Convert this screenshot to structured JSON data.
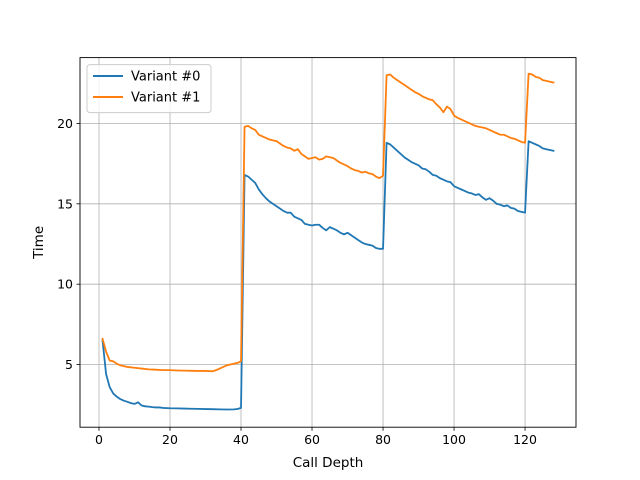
{
  "chart_data": {
    "type": "line",
    "title": "",
    "xlabel": "Call Depth",
    "ylabel": "Time",
    "xlim": [
      -5.35,
      134.35
    ],
    "ylim": [
      1.1,
      24.1
    ],
    "xticks": [
      0,
      20,
      40,
      60,
      80,
      100,
      120
    ],
    "yticks": [
      5,
      10,
      15,
      20
    ],
    "grid": true,
    "legend_position": "top-left",
    "series": [
      {
        "name": "Variant #0",
        "color": "#1f77b4",
        "points": [
          [
            1,
            6.5
          ],
          [
            2,
            4.4
          ],
          [
            3,
            3.6
          ],
          [
            4,
            3.2
          ],
          [
            5,
            3.0
          ],
          [
            6,
            2.85
          ],
          [
            7,
            2.75
          ],
          [
            8,
            2.68
          ],
          [
            9,
            2.6
          ],
          [
            10,
            2.55
          ],
          [
            11,
            2.65
          ],
          [
            12,
            2.45
          ],
          [
            13,
            2.4
          ],
          [
            14,
            2.38
          ],
          [
            15,
            2.35
          ],
          [
            16,
            2.33
          ],
          [
            17,
            2.33
          ],
          [
            18,
            2.3
          ],
          [
            20,
            2.28
          ],
          [
            22,
            2.27
          ],
          [
            24,
            2.26
          ],
          [
            26,
            2.25
          ],
          [
            28,
            2.24
          ],
          [
            30,
            2.23
          ],
          [
            32,
            2.22
          ],
          [
            34,
            2.21
          ],
          [
            36,
            2.2
          ],
          [
            38,
            2.21
          ],
          [
            39,
            2.23
          ],
          [
            40,
            2.3
          ],
          [
            41,
            16.8
          ],
          [
            42,
            16.7
          ],
          [
            43,
            16.5
          ],
          [
            44,
            16.3
          ],
          [
            45,
            15.9
          ],
          [
            46,
            15.6
          ],
          [
            47,
            15.35
          ],
          [
            48,
            15.15
          ],
          [
            49,
            15.0
          ],
          [
            50,
            14.85
          ],
          [
            51,
            14.7
          ],
          [
            52,
            14.55
          ],
          [
            53,
            14.45
          ],
          [
            54,
            14.45
          ],
          [
            55,
            14.2
          ],
          [
            56,
            14.1
          ],
          [
            57,
            14.0
          ],
          [
            58,
            13.75
          ],
          [
            59,
            13.7
          ],
          [
            60,
            13.65
          ],
          [
            61,
            13.7
          ],
          [
            62,
            13.7
          ],
          [
            63,
            13.5
          ],
          [
            64,
            13.35
          ],
          [
            65,
            13.55
          ],
          [
            66,
            13.45
          ],
          [
            67,
            13.35
          ],
          [
            68,
            13.2
          ],
          [
            69,
            13.1
          ],
          [
            70,
            13.2
          ],
          [
            71,
            13.05
          ],
          [
            72,
            12.9
          ],
          [
            73,
            12.75
          ],
          [
            74,
            12.6
          ],
          [
            75,
            12.5
          ],
          [
            76,
            12.45
          ],
          [
            77,
            12.4
          ],
          [
            78,
            12.25
          ],
          [
            79,
            12.2
          ],
          [
            80,
            12.2
          ],
          [
            81,
            18.8
          ],
          [
            82,
            18.7
          ],
          [
            83,
            18.5
          ],
          [
            84,
            18.3
          ],
          [
            85,
            18.1
          ],
          [
            86,
            17.9
          ],
          [
            87,
            17.75
          ],
          [
            88,
            17.6
          ],
          [
            89,
            17.5
          ],
          [
            90,
            17.4
          ],
          [
            91,
            17.2
          ],
          [
            92,
            17.15
          ],
          [
            93,
            17.0
          ],
          [
            94,
            16.8
          ],
          [
            95,
            16.75
          ],
          [
            96,
            16.6
          ],
          [
            97,
            16.5
          ],
          [
            98,
            16.4
          ],
          [
            99,
            16.35
          ],
          [
            100,
            16.1
          ],
          [
            101,
            16.0
          ],
          [
            102,
            15.9
          ],
          [
            103,
            15.8
          ],
          [
            104,
            15.7
          ],
          [
            105,
            15.65
          ],
          [
            106,
            15.55
          ],
          [
            107,
            15.6
          ],
          [
            108,
            15.4
          ],
          [
            109,
            15.25
          ],
          [
            110,
            15.35
          ],
          [
            111,
            15.2
          ],
          [
            112,
            15.0
          ],
          [
            113,
            14.95
          ],
          [
            114,
            14.85
          ],
          [
            115,
            14.9
          ],
          [
            116,
            14.75
          ],
          [
            117,
            14.7
          ],
          [
            118,
            14.55
          ],
          [
            119,
            14.5
          ],
          [
            120,
            14.45
          ],
          [
            121,
            18.9
          ],
          [
            122,
            18.8
          ],
          [
            123,
            18.7
          ],
          [
            124,
            18.6
          ],
          [
            125,
            18.45
          ],
          [
            126,
            18.4
          ],
          [
            127,
            18.35
          ],
          [
            128,
            18.3
          ]
        ]
      },
      {
        "name": "Variant #1",
        "color": "#ff7f0e",
        "points": [
          [
            1,
            6.6
          ],
          [
            2,
            5.8
          ],
          [
            3,
            5.25
          ],
          [
            4,
            5.2
          ],
          [
            5,
            5.05
          ],
          [
            6,
            4.95
          ],
          [
            7,
            4.9
          ],
          [
            8,
            4.85
          ],
          [
            10,
            4.8
          ],
          [
            12,
            4.75
          ],
          [
            14,
            4.7
          ],
          [
            16,
            4.68
          ],
          [
            18,
            4.65
          ],
          [
            20,
            4.65
          ],
          [
            22,
            4.63
          ],
          [
            24,
            4.62
          ],
          [
            26,
            4.61
          ],
          [
            28,
            4.6
          ],
          [
            30,
            4.6
          ],
          [
            32,
            4.58
          ],
          [
            33,
            4.65
          ],
          [
            34,
            4.75
          ],
          [
            35,
            4.85
          ],
          [
            36,
            4.95
          ],
          [
            37,
            5.0
          ],
          [
            38,
            5.05
          ],
          [
            39,
            5.1
          ],
          [
            40,
            5.2
          ],
          [
            41,
            19.8
          ],
          [
            42,
            19.85
          ],
          [
            43,
            19.7
          ],
          [
            44,
            19.6
          ],
          [
            45,
            19.3
          ],
          [
            46,
            19.2
          ],
          [
            47,
            19.1
          ],
          [
            48,
            19.0
          ],
          [
            49,
            18.95
          ],
          [
            50,
            18.9
          ],
          [
            51,
            18.75
          ],
          [
            52,
            18.6
          ],
          [
            53,
            18.5
          ],
          [
            54,
            18.45
          ],
          [
            55,
            18.3
          ],
          [
            56,
            18.4
          ],
          [
            57,
            18.1
          ],
          [
            58,
            17.95
          ],
          [
            59,
            17.8
          ],
          [
            60,
            17.85
          ],
          [
            61,
            17.9
          ],
          [
            62,
            17.75
          ],
          [
            63,
            17.8
          ],
          [
            64,
            17.95
          ],
          [
            65,
            17.9
          ],
          [
            66,
            17.85
          ],
          [
            67,
            17.7
          ],
          [
            68,
            17.55
          ],
          [
            69,
            17.45
          ],
          [
            70,
            17.35
          ],
          [
            71,
            17.2
          ],
          [
            72,
            17.1
          ],
          [
            73,
            17.05
          ],
          [
            74,
            16.95
          ],
          [
            75,
            17.0
          ],
          [
            76,
            16.9
          ],
          [
            77,
            16.85
          ],
          [
            78,
            16.7
          ],
          [
            79,
            16.6
          ],
          [
            80,
            16.75
          ],
          [
            81,
            23.0
          ],
          [
            82,
            23.05
          ],
          [
            83,
            22.85
          ],
          [
            84,
            22.7
          ],
          [
            85,
            22.55
          ],
          [
            86,
            22.4
          ],
          [
            87,
            22.25
          ],
          [
            88,
            22.1
          ],
          [
            89,
            21.95
          ],
          [
            90,
            21.85
          ],
          [
            91,
            21.7
          ],
          [
            92,
            21.6
          ],
          [
            93,
            21.5
          ],
          [
            94,
            21.45
          ],
          [
            95,
            21.2
          ],
          [
            96,
            21.0
          ],
          [
            97,
            20.7
          ],
          [
            98,
            21.05
          ],
          [
            99,
            20.9
          ],
          [
            100,
            20.5
          ],
          [
            101,
            20.35
          ],
          [
            102,
            20.25
          ],
          [
            103,
            20.15
          ],
          [
            104,
            20.05
          ],
          [
            105,
            19.95
          ],
          [
            106,
            19.85
          ],
          [
            107,
            19.8
          ],
          [
            108,
            19.75
          ],
          [
            109,
            19.7
          ],
          [
            110,
            19.6
          ],
          [
            111,
            19.5
          ],
          [
            112,
            19.4
          ],
          [
            113,
            19.3
          ],
          [
            114,
            19.3
          ],
          [
            115,
            19.2
          ],
          [
            116,
            19.1
          ],
          [
            117,
            19.05
          ],
          [
            118,
            18.95
          ],
          [
            119,
            18.85
          ],
          [
            120,
            18.8
          ],
          [
            121,
            23.1
          ],
          [
            122,
            23.05
          ],
          [
            123,
            22.9
          ],
          [
            124,
            22.85
          ],
          [
            125,
            22.7
          ],
          [
            126,
            22.65
          ],
          [
            127,
            22.6
          ],
          [
            128,
            22.55
          ]
        ]
      }
    ]
  }
}
